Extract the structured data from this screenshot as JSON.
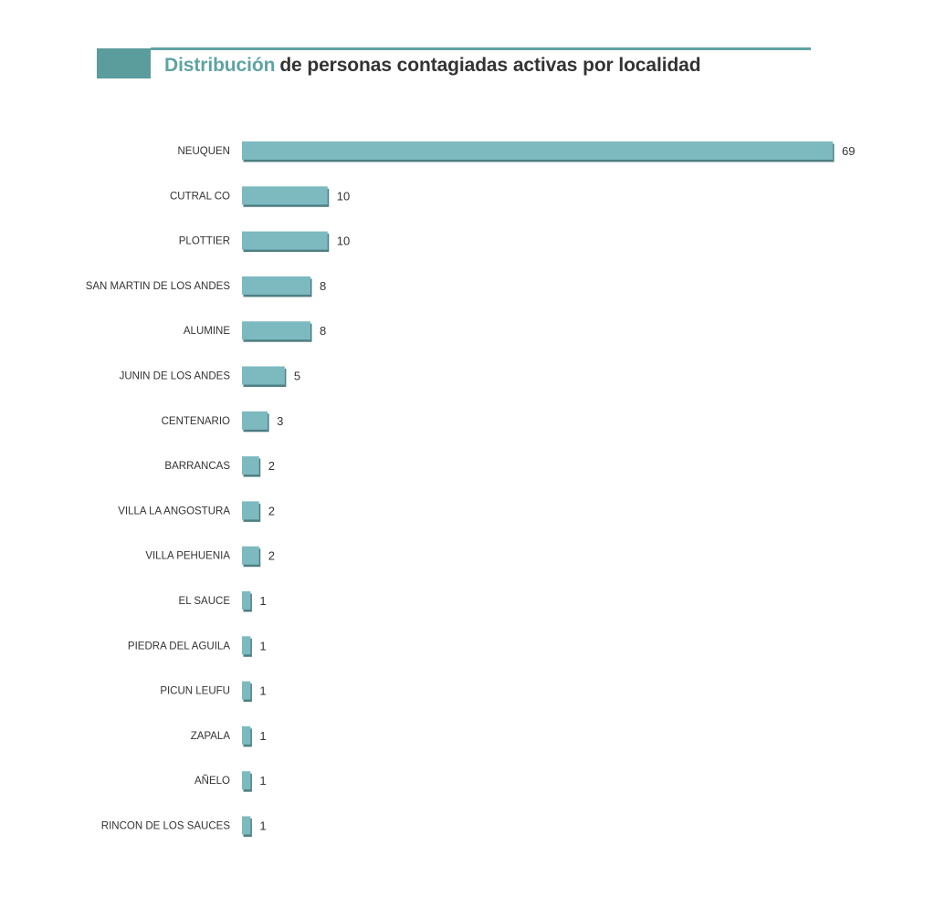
{
  "colors": {
    "accent": "#5fa3a3",
    "header_block": "#5b9c9c",
    "bar": "#7cbac0",
    "bar_shadow": "#4f7f83",
    "text": "#333333"
  },
  "title": {
    "accent_word": "Distribución",
    "rest": "de personas contagiadas activas por localidad"
  },
  "chart_data": {
    "type": "bar",
    "orientation": "horizontal",
    "title": "Distribución de personas contagiadas activas por localidad",
    "categories": [
      "NEUQUEN",
      "CUTRAL CO",
      "PLOTTIER",
      "SAN MARTIN DE LOS ANDES",
      "ALUMINE",
      "JUNIN DE LOS ANDES",
      "CENTENARIO",
      "BARRANCAS",
      "VILLA LA ANGOSTURA",
      "VILLA PEHUENIA",
      "EL SAUCE",
      "PIEDRA DEL AGUILA",
      "PICUN LEUFU",
      "ZAPALA",
      "AÑELO",
      "RINCON DE LOS SAUCES"
    ],
    "values": [
      69,
      10,
      10,
      8,
      8,
      5,
      3,
      2,
      2,
      2,
      1,
      1,
      1,
      1,
      1,
      1
    ],
    "xlim": [
      0,
      69
    ],
    "grid": false,
    "legend": "none",
    "data_labels": true
  }
}
